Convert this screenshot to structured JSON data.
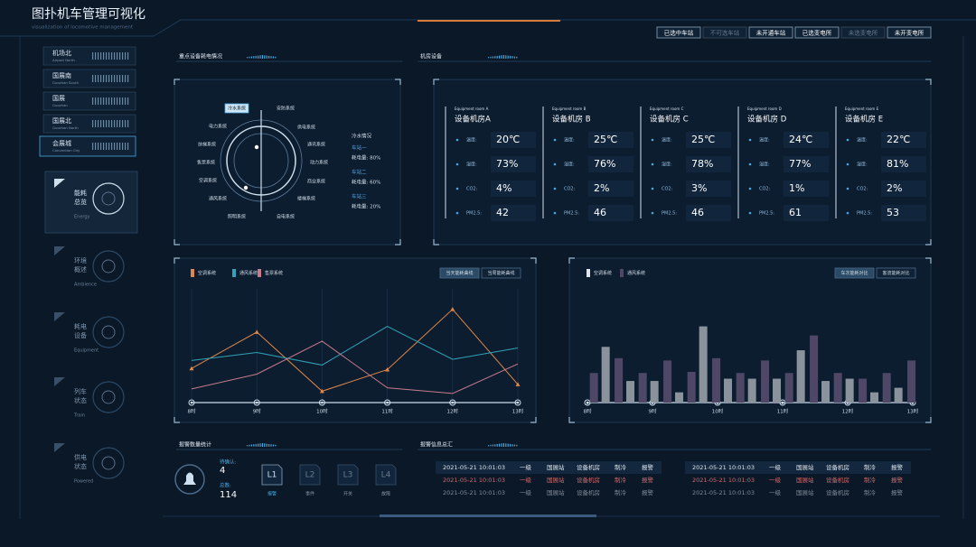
{
  "header": {
    "title": "图扑机车管理可视化",
    "subtitle": "visualization of locomotive management"
  },
  "filters": [
    "已选中车站",
    "不可选车站",
    "未开通车站",
    "已选变电所",
    "未选变电所",
    "未开变电所"
  ],
  "stations": [
    {
      "name": "机场北",
      "en": "Airport North"
    },
    {
      "name": "国展南",
      "en": "Guozhan South"
    },
    {
      "name": "国展",
      "en": "Guozhan"
    },
    {
      "name": "国展北",
      "en": "Guozhan North"
    },
    {
      "name": "会展城",
      "en": "Convention City"
    }
  ],
  "nav": [
    {
      "lines": [
        "能耗",
        "总览"
      ],
      "en": "Energy"
    },
    {
      "lines": [
        "环境",
        "概述"
      ],
      "en": "Ambience"
    },
    {
      "lines": [
        "耗电",
        "设备"
      ],
      "en": "Equipment"
    },
    {
      "lines": [
        "列车",
        "状态"
      ],
      "en": "Train"
    },
    {
      "lines": [
        "供电",
        "状态"
      ],
      "en": "Powered"
    }
  ],
  "panels": {
    "energy": "重点设备耗电情况",
    "rooms": "机房设备",
    "alarm_count": "报警数量统计",
    "alarm_log": "报警信息总汇"
  },
  "systems": [
    "冷水系统",
    "安防系统",
    "电力系统",
    "供电系统",
    "扶梯系统",
    "通讯系统",
    "售票系统",
    "动力系统",
    "空调系统",
    "商业系统",
    "通风系统",
    "楼梯系统",
    "照明系统",
    "自电系统"
  ],
  "cold_water": {
    "title": "冷水情况",
    "stations": [
      {
        "name": "车站一",
        "usage": "耗电量: 80%"
      },
      {
        "name": "车站二",
        "usage": "耗电量: 60%"
      },
      {
        "name": "车站三",
        "usage": "耗电量: 20%"
      }
    ]
  },
  "rooms": [
    {
      "en": "Equipment room A",
      "name": "设备机房A",
      "metrics": [
        {
          "label": "温度:",
          "value": "20℃"
        },
        {
          "label": "湿度:",
          "value": "73%"
        },
        {
          "label": "CO2:",
          "value": "4%"
        },
        {
          "label": "PM2.5:",
          "value": "42"
        }
      ]
    },
    {
      "en": "Equipment room B",
      "name": "设备机房 B",
      "metrics": [
        {
          "label": "温度:",
          "value": "25℃"
        },
        {
          "label": "湿度:",
          "value": "76%"
        },
        {
          "label": "CO2:",
          "value": "2%"
        },
        {
          "label": "PM2.5:",
          "value": "46"
        }
      ]
    },
    {
      "en": "Equipment room C",
      "name": "设备机房 C",
      "metrics": [
        {
          "label": "温度:",
          "value": "25℃"
        },
        {
          "label": "湿度:",
          "value": "78%"
        },
        {
          "label": "CO2:",
          "value": "3%"
        },
        {
          "label": "PM2.5:",
          "value": "46"
        }
      ]
    },
    {
      "en": "Equipment room D",
      "name": "设备机房 D",
      "metrics": [
        {
          "label": "温度:",
          "value": "24℃"
        },
        {
          "label": "湿度:",
          "value": "77%"
        },
        {
          "label": "CO2:",
          "value": "1%"
        },
        {
          "label": "PM2.5:",
          "value": "61"
        }
      ]
    },
    {
      "en": "Equipment room E",
      "name": "设备机房 E",
      "metrics": [
        {
          "label": "温度:",
          "value": "22℃"
        },
        {
          "label": "湿度:",
          "value": "81%"
        },
        {
          "label": "CO2:",
          "value": "2%"
        },
        {
          "label": "PM2.5:",
          "value": "53"
        }
      ]
    }
  ],
  "alarms": {
    "pending_label": "待确认:",
    "pending": 4,
    "total_label": "总数:",
    "total": 114,
    "levels": [
      {
        "code": "L1",
        "label": "报警"
      },
      {
        "code": "L2",
        "label": "事件"
      },
      {
        "code": "L3",
        "label": "开关"
      },
      {
        "code": "L4",
        "label": "故障"
      }
    ]
  },
  "alarm_log": {
    "left": [
      [
        "2021-05-21 10:01:03",
        "一级",
        "国展站",
        "设备机房",
        "制冷",
        "报警"
      ],
      [
        "2021-05-21 10:01:03",
        "一级",
        "国展站",
        "设备机房",
        "制冷",
        "报警"
      ],
      [
        "2021-05-21 10:01:03",
        "一级",
        "国展站",
        "设备机房",
        "制冷",
        "报警"
      ]
    ],
    "right": [
      [
        "2021-05-21 10:01:03",
        "一级",
        "国展站",
        "设备机房",
        "制冷",
        "报警"
      ],
      [
        "2021-05-21 10:01:03",
        "一级",
        "国展站",
        "设备机房",
        "制冷",
        "报警"
      ],
      [
        "2021-05-21 10:01:03",
        "一级",
        "国展站",
        "设备机房",
        "制冷",
        "报警"
      ]
    ]
  },
  "chart_data": [
    {
      "type": "line",
      "categories": [
        "8时",
        "9时",
        "10时",
        "11时",
        "12时",
        "13时"
      ],
      "ylim": [
        0,
        100
      ],
      "series": [
        {
          "name": "空调系统",
          "color": "#e0874a",
          "values": [
            30,
            62,
            10,
            29,
            82,
            16
          ]
        },
        {
          "name": "通风系统",
          "color": "#2fa3b8",
          "values": [
            37,
            44,
            33,
            67,
            38,
            48
          ]
        },
        {
          "name": "售票系统",
          "color": "#c77b8d",
          "values": [
            12,
            25,
            54,
            13,
            8,
            34
          ]
        }
      ],
      "buttons": [
        "当天能耗曲线",
        "当周能耗曲线"
      ]
    },
    {
      "type": "bar",
      "xlim": [
        8,
        13
      ],
      "xticks": [
        {
          "value": 8,
          "label": "8时"
        },
        {
          "value": 9,
          "label": "9时"
        },
        {
          "value": 10,
          "label": "10时"
        },
        {
          "value": 11,
          "label": "11时"
        },
        {
          "value": 12,
          "label": "12时"
        },
        {
          "value": 13,
          "label": "13时"
        }
      ],
      "ylim": [
        0,
        100
      ],
      "series": [
        {
          "name": "空调系统",
          "color": "#8a939c",
          "x": [
            8.28,
            8.66,
            9.03,
            9.41,
            9.78,
            10.16,
            10.53,
            10.91,
            11.28,
            11.66,
            12.03,
            12.41,
            12.78
          ],
          "values": [
            49,
            19,
            19,
            9,
            67,
            21,
            21,
            21,
            46,
            19,
            21,
            9,
            13
          ]
        },
        {
          "name": "通风系统",
          "color": "#4e4866",
          "x": [
            8.1,
            8.48,
            8.85,
            9.23,
            9.6,
            9.98,
            10.35,
            10.73,
            11.1,
            11.48,
            11.85,
            12.23,
            12.6,
            12.98
          ],
          "values": [
            26,
            39,
            26,
            37,
            27,
            39,
            26,
            37,
            26,
            59,
            26,
            21,
            26,
            37
          ]
        }
      ],
      "buttons": [
        "车次能耗对比",
        "客流能耗对比"
      ]
    }
  ]
}
